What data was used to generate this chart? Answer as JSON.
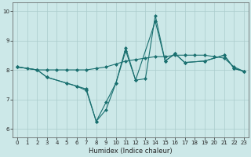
{
  "title": "",
  "xlabel": "Humidex (Indice chaleur)",
  "bg_color": "#cce8e8",
  "line_color": "#1a7070",
  "grid_color": "#aacccc",
  "xlim": [
    -0.5,
    23.5
  ],
  "ylim": [
    5.7,
    10.3
  ],
  "xticks": [
    0,
    1,
    2,
    3,
    4,
    5,
    6,
    7,
    8,
    9,
    10,
    11,
    12,
    13,
    14,
    15,
    16,
    17,
    18,
    19,
    20,
    21,
    22,
    23
  ],
  "yticks": [
    6,
    7,
    8,
    9,
    10
  ],
  "line1_x": [
    0,
    1,
    2,
    3,
    4,
    5,
    6,
    7,
    8,
    9,
    10,
    11,
    12,
    13,
    14,
    15,
    16,
    17,
    18,
    19,
    20,
    21,
    22,
    23
  ],
  "line1_y": [
    8.1,
    8.05,
    8.0,
    8.0,
    8.0,
    8.0,
    8.0,
    8.0,
    8.05,
    8.1,
    8.2,
    8.3,
    8.35,
    8.4,
    8.45,
    8.45,
    8.5,
    8.5,
    8.5,
    8.5,
    8.45,
    8.4,
    8.1,
    7.95
  ],
  "line2_x": [
    0,
    2,
    3,
    5,
    6,
    7,
    8,
    9,
    10,
    11,
    12,
    13,
    14,
    15,
    16,
    17,
    19,
    21,
    22,
    23
  ],
  "line2_y": [
    8.1,
    8.0,
    7.75,
    7.55,
    7.45,
    7.35,
    6.25,
    6.65,
    7.55,
    8.75,
    7.65,
    7.7,
    9.85,
    8.3,
    8.55,
    8.25,
    8.3,
    8.5,
    8.05,
    7.95
  ],
  "line3_x": [
    0,
    2,
    3,
    5,
    6,
    7,
    8,
    9,
    10,
    11,
    12,
    14,
    15,
    16,
    17,
    19,
    21,
    22,
    23
  ],
  "line3_y": [
    8.1,
    8.0,
    7.75,
    7.55,
    7.45,
    7.3,
    6.25,
    6.9,
    7.55,
    8.65,
    7.65,
    9.65,
    8.3,
    8.55,
    8.25,
    8.3,
    8.5,
    8.05,
    7.95
  ],
  "marker": "D",
  "marker_size": 2.5,
  "linewidth": 0.8,
  "tick_fontsize": 5,
  "xlabel_fontsize": 6
}
